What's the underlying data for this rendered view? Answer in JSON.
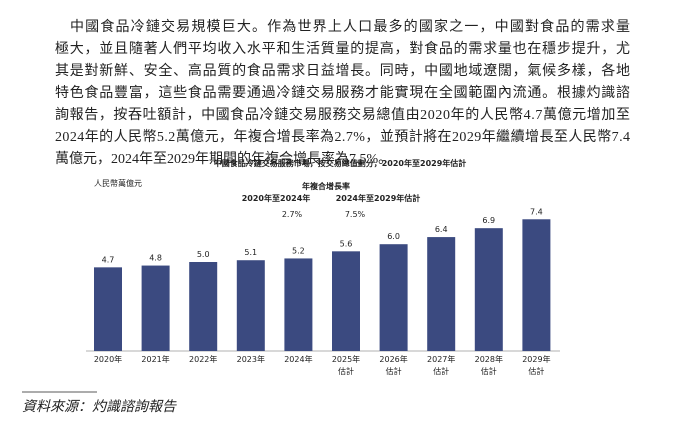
{
  "paragraph": {
    "lines": [
      "中國食品冷鏈交易規模巨大。作為世界上人口最多的國家之一，中國對食品的需求量",
      "極大，並且隨著人們平均收入水平和生活質量的提高，對食品的需求量也在穩步提升，尤",
      "其是對新鮮、安全、高品質的食品需求日益增長。同時，中國地域遼闊，氣候多樣，各地",
      "特色食品豐富，這些食品需要通過冷鏈交易服務才能實現在全國範圍內流通。根據灼識諮",
      "詢報告，按吞吐額計，中國食品冷鏈交易服務交易總值由2020年的人民幣4.7萬億元增加至",
      "2024年的人民幣5.2萬億元，年複合增長率為2.7%，並預計將在2029年繼續增長至人民幣7.4",
      "萬億元，2024年至2029年期間的年複合增長率為7.5%。"
    ]
  },
  "chart_data": {
    "type": "bar",
    "title": "中國食品冷鏈交易服務市場，按交易總值劃分，2020年至2029年估計",
    "y_label": "人民幣萬億元",
    "cagr": {
      "title": "年複合增長率",
      "periods": [
        {
          "label": "2020年至2024年",
          "value": "2.7%"
        },
        {
          "label": "2024年至2029年估計",
          "value": "7.5%"
        }
      ]
    },
    "categories": [
      [
        "2020年"
      ],
      [
        "2021年"
      ],
      [
        "2022年"
      ],
      [
        "2023年"
      ],
      [
        "2024年"
      ],
      [
        "2025年",
        "估計"
      ],
      [
        "2026年",
        "估計"
      ],
      [
        "2027年",
        "估計"
      ],
      [
        "2028年",
        "估計"
      ],
      [
        "2029年",
        "估計"
      ]
    ],
    "values": [
      4.7,
      4.8,
      5.0,
      5.1,
      5.2,
      5.6,
      6.0,
      6.4,
      6.9,
      7.4
    ],
    "value_labels": [
      "4.7",
      "4.8",
      "5.0",
      "5.1",
      "5.2",
      "5.6",
      "6.0",
      "6.4",
      "6.9",
      "7.4"
    ],
    "color": "#3b4a80"
  },
  "source": "資料來源：灼識諮詢報告"
}
